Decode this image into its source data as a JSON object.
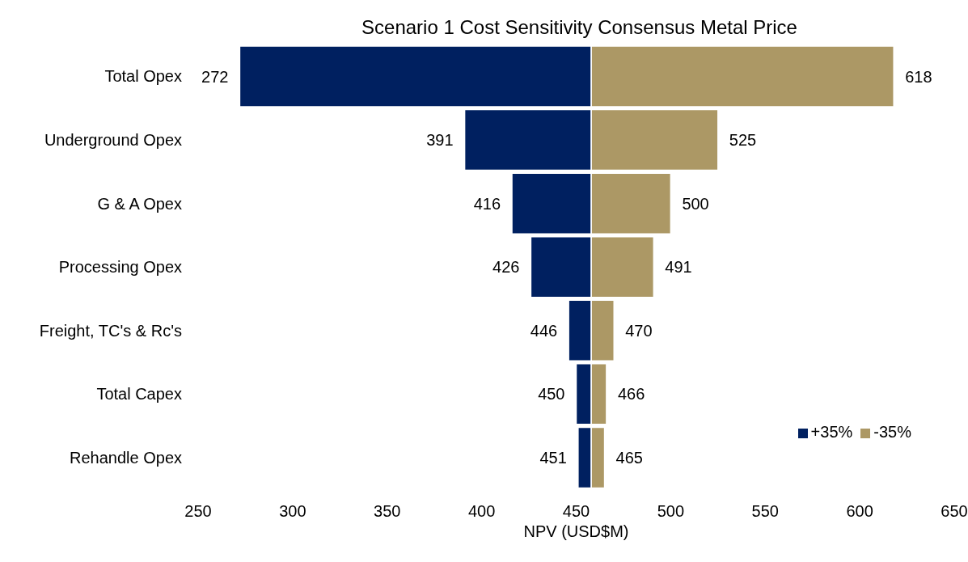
{
  "chart_data": {
    "type": "bar",
    "orientation": "horizontal",
    "title": "Scenario 1 Cost Sensitivity Consensus Metal Price",
    "xlabel": "NPV (USD$M)",
    "categories": [
      "Total Opex",
      "Underground Opex",
      "G & A Opex",
      "Processing Opex",
      "Freight, TC's & Rc's",
      "Total Capex",
      "Rehandle Opex"
    ],
    "series": [
      {
        "name": "+35%",
        "color": "#002060",
        "base": [
          458,
          458,
          458,
          458,
          458,
          458,
          458
        ],
        "values": [
          -186,
          -67,
          -42,
          -32,
          -12,
          -8,
          -7
        ],
        "value_labels": [
          "272",
          "391",
          "416",
          "426",
          "446",
          "450",
          "451"
        ]
      },
      {
        "name": "-35%",
        "color": "#ac9865",
        "base": [
          458,
          458,
          458,
          458,
          458,
          458,
          458
        ],
        "values": [
          160,
          67,
          42,
          33,
          12,
          8,
          7
        ],
        "value_labels": [
          "618",
          "525",
          "500",
          "491",
          "470",
          "466",
          "465"
        ]
      }
    ],
    "xlim": [
      250,
      650
    ],
    "xticks": [
      250,
      300,
      350,
      400,
      450,
      500,
      550,
      600,
      650
    ],
    "legend": "bottom right"
  }
}
